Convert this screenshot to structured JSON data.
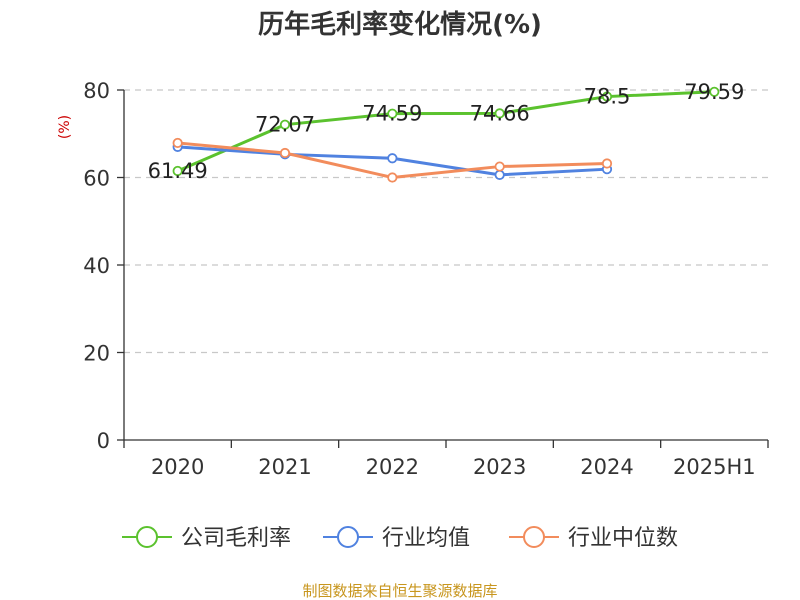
{
  "colors": {
    "company": "#5bc22e",
    "industry_avg": "#5082e0",
    "industry_median": "#f28c5c",
    "unit": "#cc0000",
    "source": "#c8961e",
    "axis": "#333333",
    "grid": "#c8c8c8"
  },
  "chart_data": {
    "type": "line",
    "title": "历年毛利率变化情况(%)",
    "ylabel": "(%)",
    "categories": [
      "2020",
      "2021",
      "2022",
      "2023",
      "2024",
      "2025H1"
    ],
    "ylim": [
      0,
      80
    ],
    "yticks": [
      0,
      20,
      40,
      60,
      80
    ],
    "grid": true,
    "legend_position": "bottom",
    "series": [
      {
        "name": "公司毛利率",
        "color": "#5bc22e",
        "values": [
          61.49,
          72.07,
          74.59,
          74.66,
          78.5,
          79.59
        ],
        "labels": [
          "61.49",
          "72.07",
          "74.59",
          "74.66",
          "78.5",
          "79.59"
        ]
      },
      {
        "name": "行业均值",
        "color": "#5082e0",
        "values": [
          67.0,
          65.3,
          64.4,
          60.6,
          61.9,
          null
        ]
      },
      {
        "name": "行业中位数",
        "color": "#f28c5c",
        "values": [
          67.9,
          65.6,
          60.0,
          62.5,
          63.2,
          null
        ]
      }
    ]
  },
  "source_text": "制图数据来自恒生聚源数据库"
}
